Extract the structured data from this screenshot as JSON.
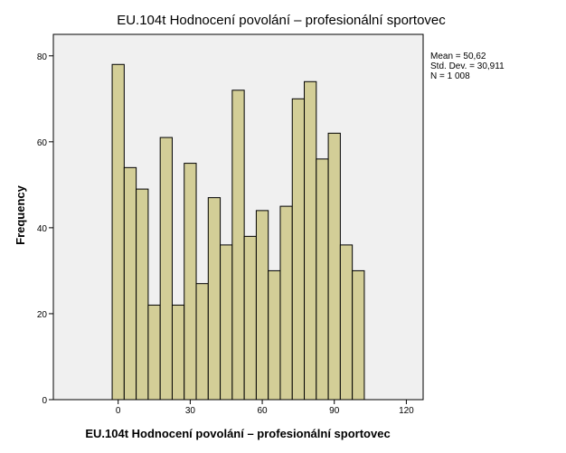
{
  "chart_data": {
    "type": "bar",
    "title": "EU.104t Hodnocení povolání – profesionální sportovec",
    "xlabel": "EU.104t Hodnocení povolání – profesionální sportovec",
    "ylabel": "Frequency",
    "x_ticks": [
      0,
      30,
      60,
      90,
      120
    ],
    "y_ticks": [
      0,
      20,
      40,
      60,
      80
    ],
    "xlim": [
      -27,
      127
    ],
    "ylim": [
      0,
      85
    ],
    "bin_width": 5,
    "bins": [
      {
        "start": -2.5,
        "value": 78
      },
      {
        "start": 2.5,
        "value": 54
      },
      {
        "start": 7.5,
        "value": 49
      },
      {
        "start": 12.5,
        "value": 22
      },
      {
        "start": 17.5,
        "value": 61
      },
      {
        "start": 22.5,
        "value": 22
      },
      {
        "start": 27.5,
        "value": 55
      },
      {
        "start": 32.5,
        "value": 27
      },
      {
        "start": 37.5,
        "value": 47
      },
      {
        "start": 42.5,
        "value": 36
      },
      {
        "start": 47.5,
        "value": 72
      },
      {
        "start": 52.5,
        "value": 38
      },
      {
        "start": 57.5,
        "value": 44
      },
      {
        "start": 62.5,
        "value": 30
      },
      {
        "start": 67.5,
        "value": 45
      },
      {
        "start": 72.5,
        "value": 70
      },
      {
        "start": 77.5,
        "value": 74
      },
      {
        "start": 82.5,
        "value": 56
      },
      {
        "start": 87.5,
        "value": 62
      },
      {
        "start": 92.5,
        "value": 36
      },
      {
        "start": 97.5,
        "value": 30
      }
    ],
    "colors": {
      "bar_fill": "#d3ce97",
      "bar_stroke": "#000000",
      "plot_bg": "#f0f0f0"
    },
    "grid": false
  },
  "stats": {
    "mean": "Mean = 50,62",
    "std_dev": "Std. Dev. = 30,911",
    "n": "N = 1 008"
  }
}
